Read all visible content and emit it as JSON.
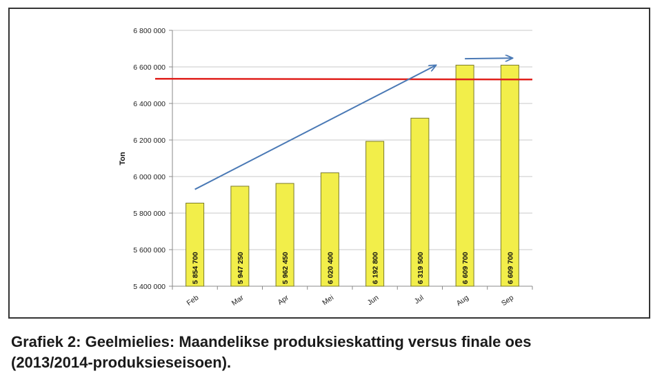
{
  "caption": {
    "line1": "Grafiek 2: Geelmielies: Maandelikse produksieskatting versus finale oes",
    "line2": "(2013/2014-produksieseisoen)."
  },
  "chart_data": {
    "type": "bar",
    "ylabel": "Ton",
    "xlabel": "",
    "ylim": [
      5400000,
      6800000
    ],
    "y_ticks": [
      5400000,
      5600000,
      5800000,
      6000000,
      6200000,
      6400000,
      6600000,
      6800000
    ],
    "y_tick_labels": [
      "5 400 000",
      "5 600 000",
      "5 800 000",
      "6 000 000",
      "6 200 000",
      "6 400 000",
      "6 600 000",
      "6 800 000"
    ],
    "categories": [
      "Feb",
      "Mar",
      "Apr",
      "Mei",
      "Jun",
      "Jul",
      "Aug",
      "Sep"
    ],
    "values": [
      5854700,
      5947250,
      5962450,
      6020400,
      6192800,
      6319500,
      6609700,
      6609700
    ],
    "value_labels": [
      "5 854 700",
      "5 947 250",
      "5 962 450",
      "6 020 400",
      "6 192 800",
      "6 319 500",
      "6 609 700",
      "6 609 700"
    ],
    "grid": true,
    "colors": {
      "bar_fill": "#f2ee4a",
      "bar_stroke": "#7a7a2a",
      "reference_line": "#e0201c",
      "trend_arrow": "#4a79b5",
      "grid": "#c8c8c8"
    },
    "reference_line": {
      "y": 6535000,
      "x_from_category": 0,
      "x_to_category": 7
    },
    "trend_arrows": [
      {
        "from": {
          "category_index": 0,
          "y": 5930000
        },
        "to": {
          "category_index": 5.35,
          "y": 6608000
        }
      },
      {
        "from": {
          "category_index": 6,
          "y": 6645000
        },
        "to": {
          "category_index": 7.05,
          "y": 6648000
        }
      }
    ]
  }
}
